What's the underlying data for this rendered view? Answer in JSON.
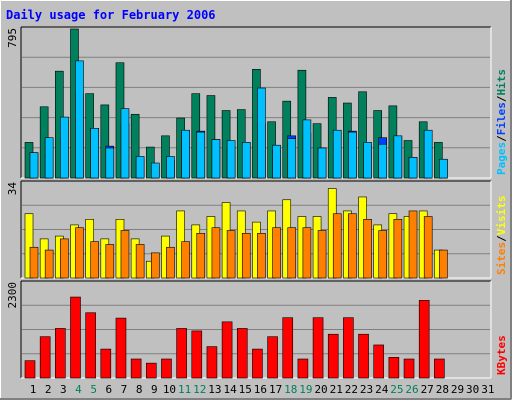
{
  "title": "Daily usage for February 2006",
  "colors": {
    "background": "#c0c0c0",
    "title": "#0000ff",
    "hits": "#00805c",
    "files": "#0040ff",
    "pages": "#00c0ff",
    "visits": "#ffff00",
    "sites": "#ff8000",
    "kbytes": "#ff0000",
    "weekend_label": "#00805c",
    "weekday_label": "#000000"
  },
  "chart_data": [
    {
      "type": "bar",
      "panel": "hits-files-pages",
      "ylim": [
        0,
        795
      ],
      "ymax_label": "795",
      "right_label": {
        "parts": [
          "Pages",
          "/",
          "Files",
          "/",
          "Hits"
        ]
      },
      "series": [
        {
          "name": "Hits",
          "values": [
            190,
            380,
            570,
            795,
            450,
            390,
            615,
            340,
            165,
            225,
            320,
            450,
            440,
            360,
            365,
            580,
            300,
            410,
            575,
            290,
            430,
            400,
            460,
            360,
            385,
            200,
            300,
            190,
            0,
            0,
            0
          ]
        },
        {
          "name": "Files",
          "values": [
            135,
            205,
            310,
            450,
            265,
            170,
            290,
            100,
            65,
            95,
            245,
            250,
            205,
            165,
            190,
            290,
            150,
            225,
            240,
            160,
            250,
            250,
            175,
            215,
            220,
            110,
            250,
            100,
            0,
            0,
            0
          ]
        },
        {
          "name": "Pages",
          "values": [
            135,
            215,
            325,
            625,
            265,
            160,
            370,
            115,
            80,
            115,
            255,
            245,
            205,
            200,
            190,
            480,
            175,
            210,
            310,
            160,
            255,
            245,
            190,
            180,
            225,
            110,
            255,
            100,
            0,
            0,
            0
          ]
        }
      ]
    },
    {
      "type": "bar",
      "panel": "visits-sites",
      "ylim": [
        0,
        34
      ],
      "ymax_label": "34",
      "right_label": {
        "parts": [
          "Sites",
          "/",
          "Visits"
        ]
      },
      "series": [
        {
          "name": "Visits",
          "values": [
            23,
            14,
            15,
            19,
            21,
            14,
            21,
            14,
            6,
            15,
            24,
            19,
            22,
            27,
            24,
            20,
            24,
            28,
            22,
            22,
            32,
            24,
            29,
            19,
            23,
            22,
            24,
            10,
            0,
            0,
            0
          ]
        },
        {
          "name": "Sites",
          "values": [
            11,
            10,
            14,
            18,
            13,
            12,
            17,
            12,
            9,
            11,
            13,
            16,
            18,
            17,
            16,
            16,
            18,
            18,
            18,
            17,
            23,
            23,
            21,
            17,
            21,
            24,
            22,
            10,
            0,
            0,
            0
          ]
        }
      ]
    },
    {
      "type": "bar",
      "panel": "kbytes",
      "ylim": [
        0,
        2300
      ],
      "ymax_label": "2300",
      "right_label": {
        "parts": [
          "KBytes"
        ]
      },
      "series": [
        {
          "name": "KBytes",
          "values": [
            420,
            1000,
            1200,
            1960,
            1580,
            700,
            1450,
            460,
            360,
            460,
            1200,
            1140,
            760,
            1360,
            1200,
            700,
            1000,
            1460,
            460,
            1460,
            1060,
            1460,
            1060,
            800,
            500,
            460,
            1880,
            460,
            0,
            0,
            0
          ]
        }
      ]
    }
  ],
  "x_axis": {
    "labels": [
      "1",
      "2",
      "3",
      "4",
      "5",
      "6",
      "7",
      "8",
      "9",
      "10",
      "11",
      "12",
      "13",
      "14",
      "15",
      "16",
      "17",
      "18",
      "19",
      "20",
      "21",
      "22",
      "23",
      "24",
      "25",
      "26",
      "27",
      "28",
      "29",
      "30",
      "31"
    ],
    "weekend": [
      false,
      false,
      false,
      true,
      true,
      false,
      false,
      false,
      false,
      false,
      true,
      true,
      false,
      false,
      false,
      false,
      false,
      true,
      true,
      false,
      false,
      false,
      false,
      false,
      true,
      true,
      false,
      false,
      false,
      false,
      false
    ]
  }
}
